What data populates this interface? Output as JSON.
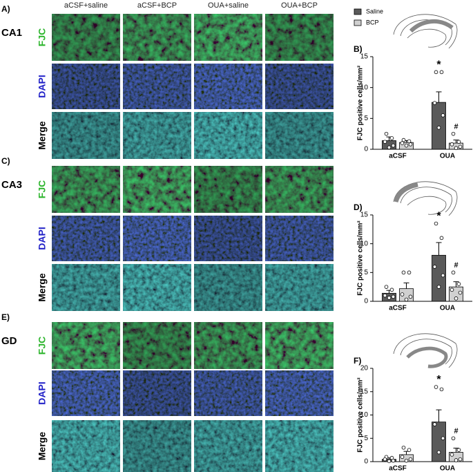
{
  "columns": [
    "aCSF+saline",
    "aCSF+BCP",
    "OUA+saline",
    "OUA+BCP"
  ],
  "rows": [
    "FJC",
    "DAPI",
    "Merge"
  ],
  "panels": [
    {
      "letter": "A)",
      "region": "CA1"
    },
    {
      "letter": "C)",
      "region": "CA3"
    },
    {
      "letter": "E)",
      "region": "GD"
    }
  ],
  "chart_data": [
    {
      "type": "bar",
      "label": "B)",
      "legend": true,
      "ylabel": "FJC positive cells/mm²",
      "categories": [
        "aCSF",
        "OUA"
      ],
      "ylim": [
        0,
        15
      ],
      "yticks": [
        0,
        5,
        10,
        15
      ],
      "series": [
        {
          "name": "Saline",
          "color": "#5a5a5a",
          "values": [
            1.4,
            7.6
          ],
          "errors": [
            0.6,
            1.7
          ],
          "significance": [
            null,
            "*"
          ],
          "points": [
            [
              2.5,
              1.8,
              1.2,
              0.6,
              0.3
            ],
            [
              12.5,
              12.5,
              7.5,
              5.5,
              3.5
            ]
          ]
        },
        {
          "name": "BCP",
          "color": "#d0d0d0",
          "values": [
            1.1,
            1.0
          ],
          "errors": [
            0.3,
            0.5
          ],
          "significance": [
            null,
            "#"
          ],
          "points": [
            [
              1.5,
              1.3,
              1.0,
              0.8,
              0.6
            ],
            [
              2.5,
              1.2,
              0.8,
              0.4,
              0.2
            ]
          ]
        }
      ]
    },
    {
      "type": "bar",
      "label": "D)",
      "legend": false,
      "ylabel": "FJC positive cells/mm²",
      "categories": [
        "aCSF",
        "OUA"
      ],
      "ylim": [
        0,
        15
      ],
      "yticks": [
        0,
        5,
        10,
        15
      ],
      "series": [
        {
          "color": "#5a5a5a",
          "values": [
            1.4,
            8.0
          ],
          "errors": [
            0.5,
            2.2
          ],
          "significance": [
            null,
            "*"
          ],
          "points": [
            [
              2.5,
              2.0,
              1.0,
              0.8,
              0.6
            ],
            [
              13.5,
              11.0,
              6.0,
              4.5,
              2.5
            ]
          ]
        },
        {
          "color": "#d0d0d0",
          "values": [
            2.2,
            2.5
          ],
          "errors": [
            1.0,
            0.9
          ],
          "significance": [
            null,
            "#"
          ],
          "points": [
            [
              5.0,
              5.0,
              1.2,
              0.8,
              0.3
            ],
            [
              5.0,
              3.0,
              2.0,
              1.5,
              0.5
            ]
          ]
        }
      ]
    },
    {
      "type": "bar",
      "label": "F)",
      "legend": false,
      "ylabel": "FJC positive cells/mm²",
      "categories": [
        "aCSF",
        "OUA"
      ],
      "ylim": [
        0,
        20
      ],
      "yticks": [
        0,
        5,
        10,
        15,
        20
      ],
      "series": [
        {
          "color": "#5a5a5a",
          "values": [
            0.5,
            8.5
          ],
          "errors": [
            0.3,
            2.6
          ],
          "significance": [
            null,
            "*"
          ],
          "points": [
            [
              1.0,
              0.8,
              0.5,
              0.2,
              0.1
            ],
            [
              16.0,
              15.5,
              8.0,
              5.0,
              2.0
            ]
          ]
        },
        {
          "color": "#d0d0d0",
          "values": [
            1.5,
            2.0
          ],
          "errors": [
            0.7,
            0.9
          ],
          "significance": [
            null,
            "#"
          ],
          "points": [
            [
              3.0,
              2.5,
              1.0,
              0.5,
              0.2
            ],
            [
              5.0,
              2.5,
              1.5,
              0.5,
              0.3
            ]
          ]
        }
      ]
    }
  ]
}
